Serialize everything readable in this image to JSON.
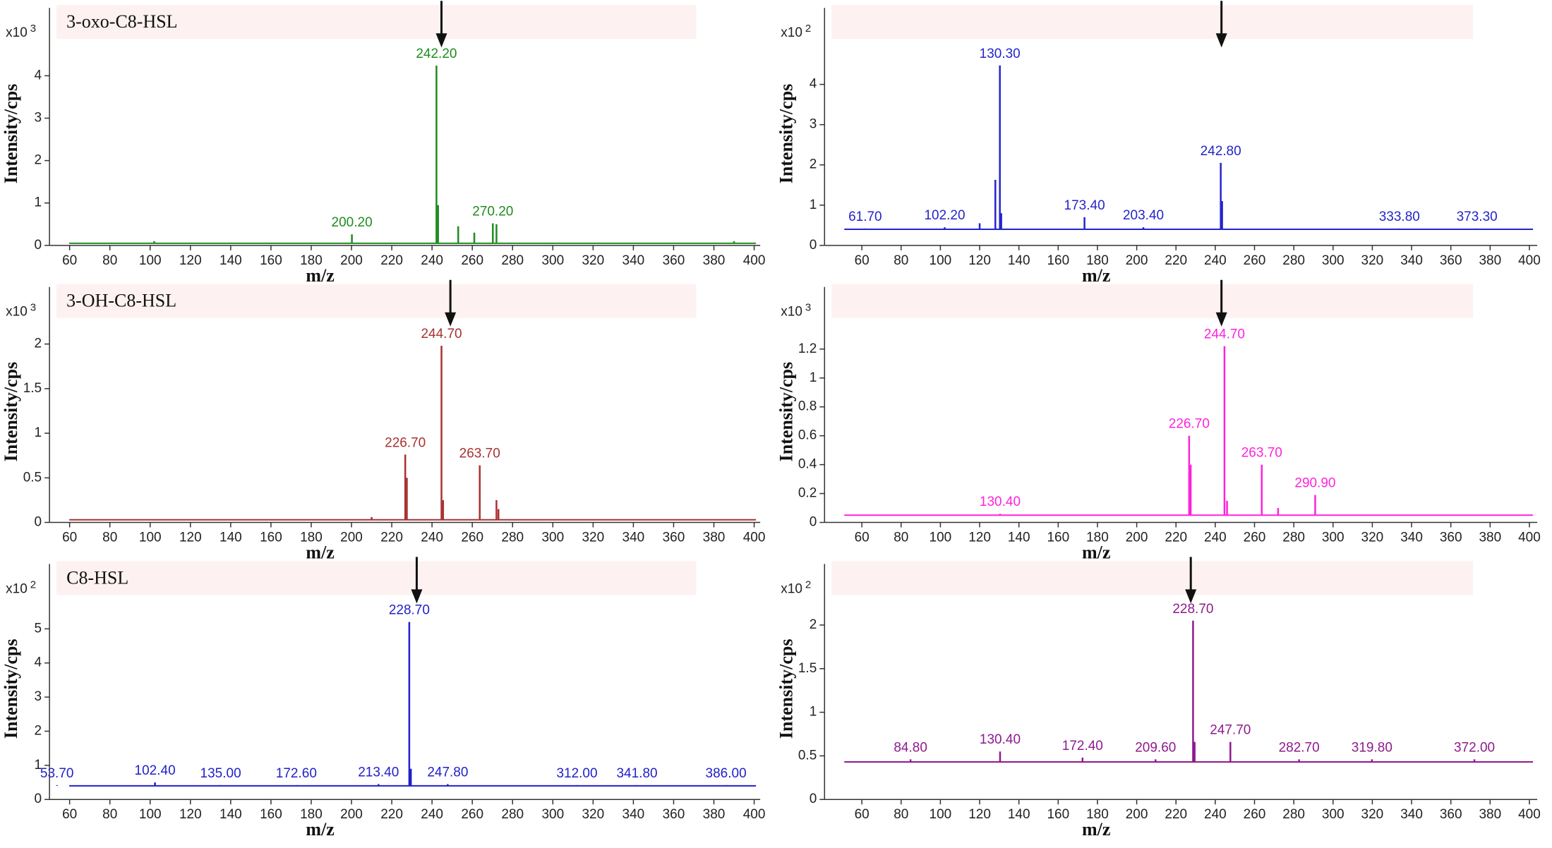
{
  "chart_data": [
    {
      "type": "stem",
      "title": "3-oxo-C8-HSL",
      "ylabel": "Intensity/cps",
      "xlabel": "m/z",
      "scale_label": "x10",
      "y_exponent": 3,
      "xlim": [
        50,
        403
      ],
      "xticks": [
        60,
        80,
        100,
        120,
        140,
        160,
        180,
        200,
        220,
        240,
        260,
        280,
        300,
        320,
        340,
        360,
        380,
        400
      ],
      "ylim": [
        0,
        5.6
      ],
      "yticks": [
        0,
        1,
        2,
        3,
        4
      ],
      "baseline": 0.05,
      "color": "#1f8c1f",
      "x": [
        102,
        200.2,
        242.2,
        243,
        253,
        261,
        270.2,
        272,
        390
      ],
      "values": [
        0.1,
        0.26,
        4.24,
        0.95,
        0.45,
        0.3,
        0.52,
        0.5,
        0.1
      ],
      "peak_labels": [
        null,
        "200.20",
        "242.20",
        null,
        null,
        null,
        "270.20",
        null,
        null
      ]
    },
    {
      "type": "stem",
      "ylabel": "Intensity/cps",
      "xlabel": "m/z",
      "scale_label": "x10",
      "y_exponent": 2,
      "xlim": [
        41,
        404
      ],
      "xticks": [
        60,
        80,
        100,
        120,
        140,
        160,
        180,
        200,
        220,
        240,
        260,
        280,
        300,
        320,
        340,
        360,
        380,
        400
      ],
      "ylim": [
        0,
        5.9
      ],
      "yticks": [
        0,
        1,
        2,
        3,
        4
      ],
      "baseline": 0.4,
      "color": "#2424cc",
      "x": [
        61.7,
        102.2,
        120,
        128,
        130.3,
        131,
        173.4,
        203.4,
        242.8,
        243.5,
        333.8,
        373.3
      ],
      "values": [
        0.42,
        0.45,
        0.55,
        1.63,
        4.47,
        0.8,
        0.7,
        0.45,
        2.05,
        1.1,
        0.42,
        0.42
      ],
      "peak_labels": [
        "61.70",
        "102.20",
        null,
        null,
        "130.30",
        null,
        "173.40",
        "203.40",
        "242.80",
        null,
        "333.80",
        "373.30"
      ]
    },
    {
      "type": "stem",
      "title": "3-OH-C8-HSL",
      "ylabel": "Intensity/cps",
      "xlabel": "m/z",
      "scale_label": "x10",
      "y_exponent": 3,
      "xlim": [
        50,
        403
      ],
      "xticks": [
        60,
        80,
        100,
        120,
        140,
        160,
        180,
        200,
        220,
        240,
        260,
        280,
        300,
        320,
        340,
        360,
        380,
        400
      ],
      "ylim": [
        0,
        2.64
      ],
      "yticks": [
        0,
        0.5,
        1,
        1.5,
        2
      ],
      "baseline": 0.03,
      "color": "#a83232",
      "x": [
        210,
        226.7,
        227.5,
        244.7,
        245.5,
        263.7,
        272,
        273
      ],
      "values": [
        0.06,
        0.76,
        0.5,
        1.98,
        0.25,
        0.64,
        0.25,
        0.15
      ],
      "peak_labels": [
        null,
        "226.70",
        null,
        "244.70",
        null,
        "263.70",
        null,
        null
      ]
    },
    {
      "type": "stem",
      "ylabel": "Intensity/cps",
      "xlabel": "m/z",
      "scale_label": "x10",
      "y_exponent": 3,
      "xlim": [
        41,
        404
      ],
      "xticks": [
        60,
        80,
        100,
        120,
        140,
        160,
        180,
        200,
        220,
        240,
        260,
        280,
        300,
        320,
        340,
        360,
        380,
        400
      ],
      "ylim": [
        0,
        1.63
      ],
      "yticks": [
        0,
        0.2,
        0.4,
        0.6,
        0.8,
        1,
        1.2
      ],
      "baseline": 0.05,
      "color": "#ff22dd",
      "x": [
        130.4,
        226.7,
        227.5,
        244.7,
        246,
        263.7,
        272,
        290.9
      ],
      "values": [
        0.06,
        0.6,
        0.4,
        1.22,
        0.15,
        0.4,
        0.1,
        0.19
      ],
      "peak_labels": [
        "130.40",
        "226.70",
        null,
        "244.70",
        null,
        "263.70",
        null,
        "290.90"
      ]
    },
    {
      "type": "stem",
      "title": "C8-HSL",
      "ylabel": "Intensity/cps",
      "xlabel": "m/z",
      "scale_label": "x10",
      "y_exponent": 2,
      "xlim": [
        50,
        403
      ],
      "xticks": [
        60,
        80,
        100,
        120,
        140,
        160,
        180,
        200,
        220,
        240,
        260,
        280,
        300,
        320,
        340,
        360,
        380,
        400
      ],
      "ylim": [
        0,
        6.9
      ],
      "yticks": [
        0,
        1,
        2,
        3,
        4,
        5
      ],
      "baseline": 0.4,
      "color": "#2020cc",
      "x": [
        53.7,
        102.4,
        135,
        172.6,
        213.4,
        228.7,
        229.5,
        247.8,
        312,
        341.8,
        386
      ],
      "values": [
        0.42,
        0.5,
        0.42,
        0.42,
        0.45,
        5.2,
        0.9,
        0.45,
        0.42,
        0.42,
        0.42
      ],
      "peak_labels": [
        "53.70",
        "102.40",
        "135.00",
        "172.60",
        "213.40",
        "228.70",
        null,
        "247.80",
        "312.00",
        "341.80",
        "386.00"
      ]
    },
    {
      "type": "stem",
      "ylabel": "Intensity/cps",
      "xlabel": "m/z",
      "scale_label": "x10",
      "y_exponent": 2,
      "xlim": [
        41,
        404
      ],
      "xticks": [
        60,
        80,
        100,
        120,
        140,
        160,
        180,
        200,
        220,
        240,
        260,
        280,
        300,
        320,
        340,
        360,
        380,
        400
      ],
      "ylim": [
        0,
        2.7
      ],
      "yticks": [
        0,
        0.5,
        1,
        1.5,
        2
      ],
      "baseline": 0.43,
      "color": "#8e1a8e",
      "x": [
        84.8,
        130.4,
        172.4,
        209.6,
        228.7,
        229.5,
        247.7,
        282.7,
        319.8,
        372
      ],
      "values": [
        0.46,
        0.55,
        0.48,
        0.46,
        2.05,
        0.66,
        0.66,
        0.46,
        0.46,
        0.46
      ],
      "peak_labels": [
        "84.80",
        "130.40",
        "172.40",
        "209.60",
        "228.70",
        null,
        "247.70",
        "282.70",
        "319.80",
        "372.00"
      ]
    }
  ]
}
